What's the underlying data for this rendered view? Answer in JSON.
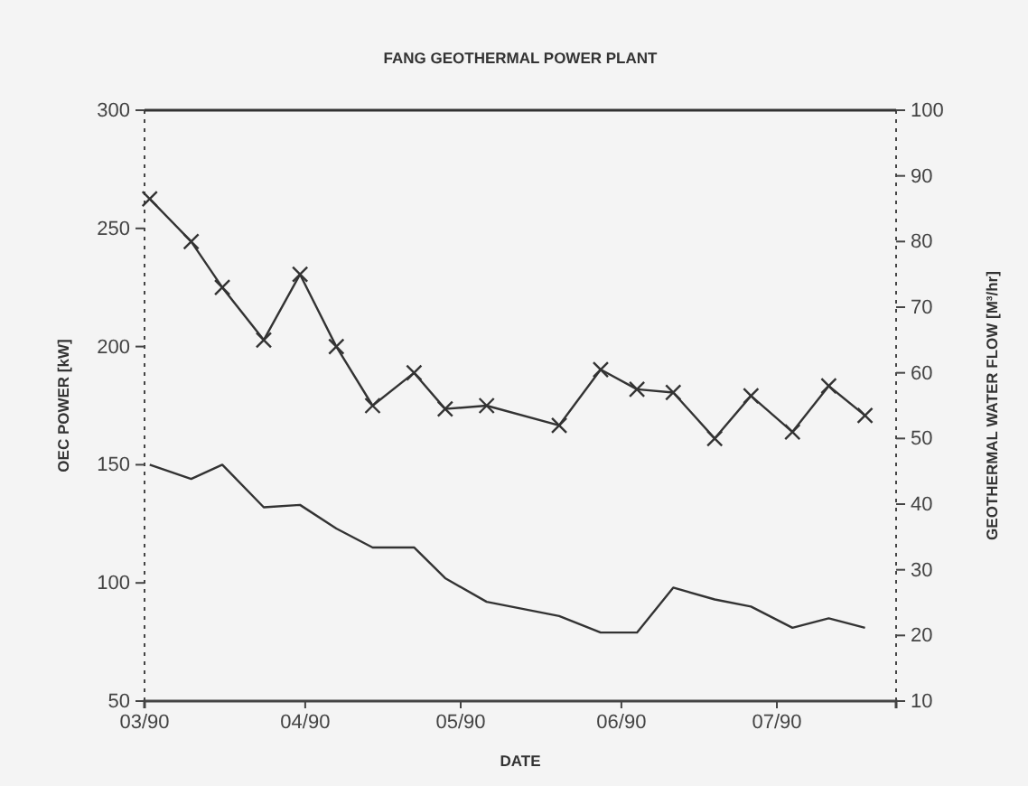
{
  "chart_data": {
    "type": "line",
    "title": "FANG GEOTHERMAL POWER PLANT",
    "xlabel": "DATE",
    "ylabel": "OEC POWER [kW]",
    "y2label": "GEOTHERMAL WATER FLOW [M³/hr]",
    "x": [
      "1990-03-02",
      "1990-03-10",
      "1990-03-16",
      "1990-03-24",
      "1990-03-31",
      "1990-04-07",
      "1990-04-14",
      "1990-04-22",
      "1990-04-28",
      "1990-05-06",
      "1990-05-20",
      "1990-05-28",
      "1990-06-04",
      "1990-06-11",
      "1990-06-19",
      "1990-06-26",
      "1990-07-04",
      "1990-07-11",
      "1990-07-18"
    ],
    "xlim": [
      "1990-03-01",
      "1990-07-24"
    ],
    "xticks": [
      {
        "value": "1990-03-01",
        "label": "03/90"
      },
      {
        "value": "1990-04-01",
        "label": "04/90"
      },
      {
        "value": "1990-05-01",
        "label": "05/90"
      },
      {
        "value": "1990-06-01",
        "label": "06/90"
      },
      {
        "value": "1990-07-01",
        "label": "07/90"
      }
    ],
    "ylim": [
      50,
      300
    ],
    "yticks": [
      50,
      100,
      150,
      200,
      250,
      300
    ],
    "y2lim": [
      10,
      100
    ],
    "y2ticks": [
      10,
      20,
      30,
      40,
      50,
      60,
      70,
      80,
      90,
      100
    ],
    "grid": false,
    "line_style": "solid",
    "series": [
      {
        "color": "#333333",
        "axis": "y2",
        "marker": "cross",
        "values": [
          86.5,
          80,
          73,
          65,
          75,
          64,
          55,
          60,
          54.5,
          55,
          52,
          60.5,
          57.5,
          57,
          50,
          56.5,
          51,
          58,
          53.5
        ]
      },
      {
        "color": "#333333",
        "axis": "y",
        "marker": "none",
        "values": [
          150,
          144,
          150,
          132,
          133,
          123,
          115,
          115,
          102,
          92,
          86,
          79,
          79,
          98,
          93,
          90,
          81,
          85,
          81
        ]
      }
    ]
  }
}
